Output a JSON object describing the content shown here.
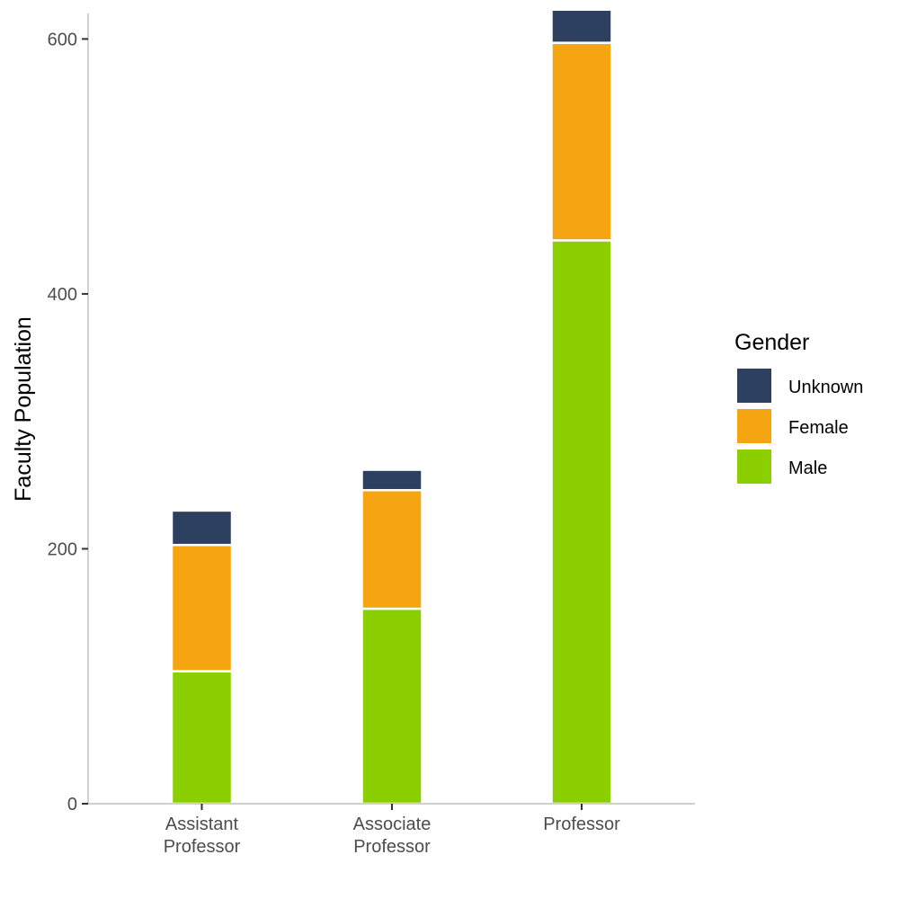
{
  "chart_data": {
    "type": "bar",
    "stacked": true,
    "categories": [
      [
        "Assistant",
        "Professor"
      ],
      [
        "Associate",
        "Professor"
      ],
      [
        "Professor"
      ]
    ],
    "series": [
      {
        "name": "Male",
        "color": "#8ccf00",
        "values": [
          104,
          153,
          442
        ]
      },
      {
        "name": "Female",
        "color": "#f4a511",
        "values": [
          99,
          93,
          155
        ]
      },
      {
        "name": "Unknown",
        "color": "#2d4060",
        "values": [
          27,
          16,
          26
        ]
      }
    ],
    "ylabel": "Faculty Population",
    "xlabel": "",
    "ylim": [
      0,
      620
    ],
    "yticks": [
      0,
      200,
      400,
      600
    ],
    "grid": false,
    "legend": {
      "title": "Gender",
      "position": "right",
      "order": [
        "Unknown",
        "Female",
        "Male"
      ]
    },
    "colors": {
      "axis": "#b3b3b3",
      "tick": "#333333",
      "tick_label": "#4d4d4d",
      "bar_outline": "#ffffff"
    }
  }
}
